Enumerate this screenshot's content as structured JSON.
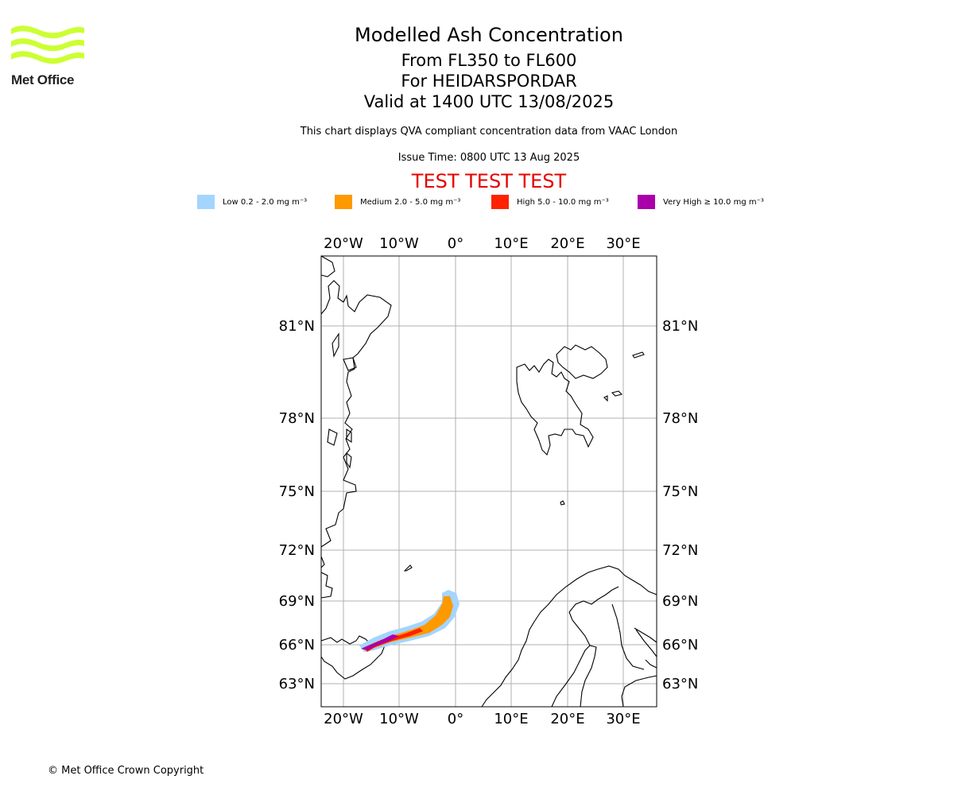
{
  "logo": {
    "text": "Met Office",
    "color": "#ccff33"
  },
  "header": {
    "title": "Modelled Ash Concentration",
    "levels": "From FL350 to FL600",
    "volcano": "For HEIDARSPORDAR",
    "valid": "Valid at 1400 UTC 13/08/2025",
    "note": "This chart displays QVA compliant concentration data from VAAC London",
    "issue": "Issue Time: 0800 UTC 13 Aug 2025",
    "test_banner": "TEST TEST TEST"
  },
  "legend": [
    {
      "label": "Low 0.2 - 2.0 mg m⁻³",
      "color": "#a3d5ff"
    },
    {
      "label": "Medium 2.0 - 5.0 mg m⁻³",
      "color": "#ff9900"
    },
    {
      "label": "High 5.0 - 10.0 mg m⁻³",
      "color": "#ff2200"
    },
    {
      "label": "Very High ≥ 10.0 mg m⁻³",
      "color": "#aa00aa"
    }
  ],
  "map": {
    "lon_labels": [
      "20°W",
      "10°W",
      "0°",
      "10°E",
      "20°E",
      "30°E"
    ],
    "lat_labels": [
      "81°N",
      "78°N",
      "75°N",
      "72°N",
      "69°N",
      "66°N",
      "63°N"
    ],
    "grid": true
  },
  "footer": {
    "copyright": "© Met Office Crown Copyright"
  }
}
